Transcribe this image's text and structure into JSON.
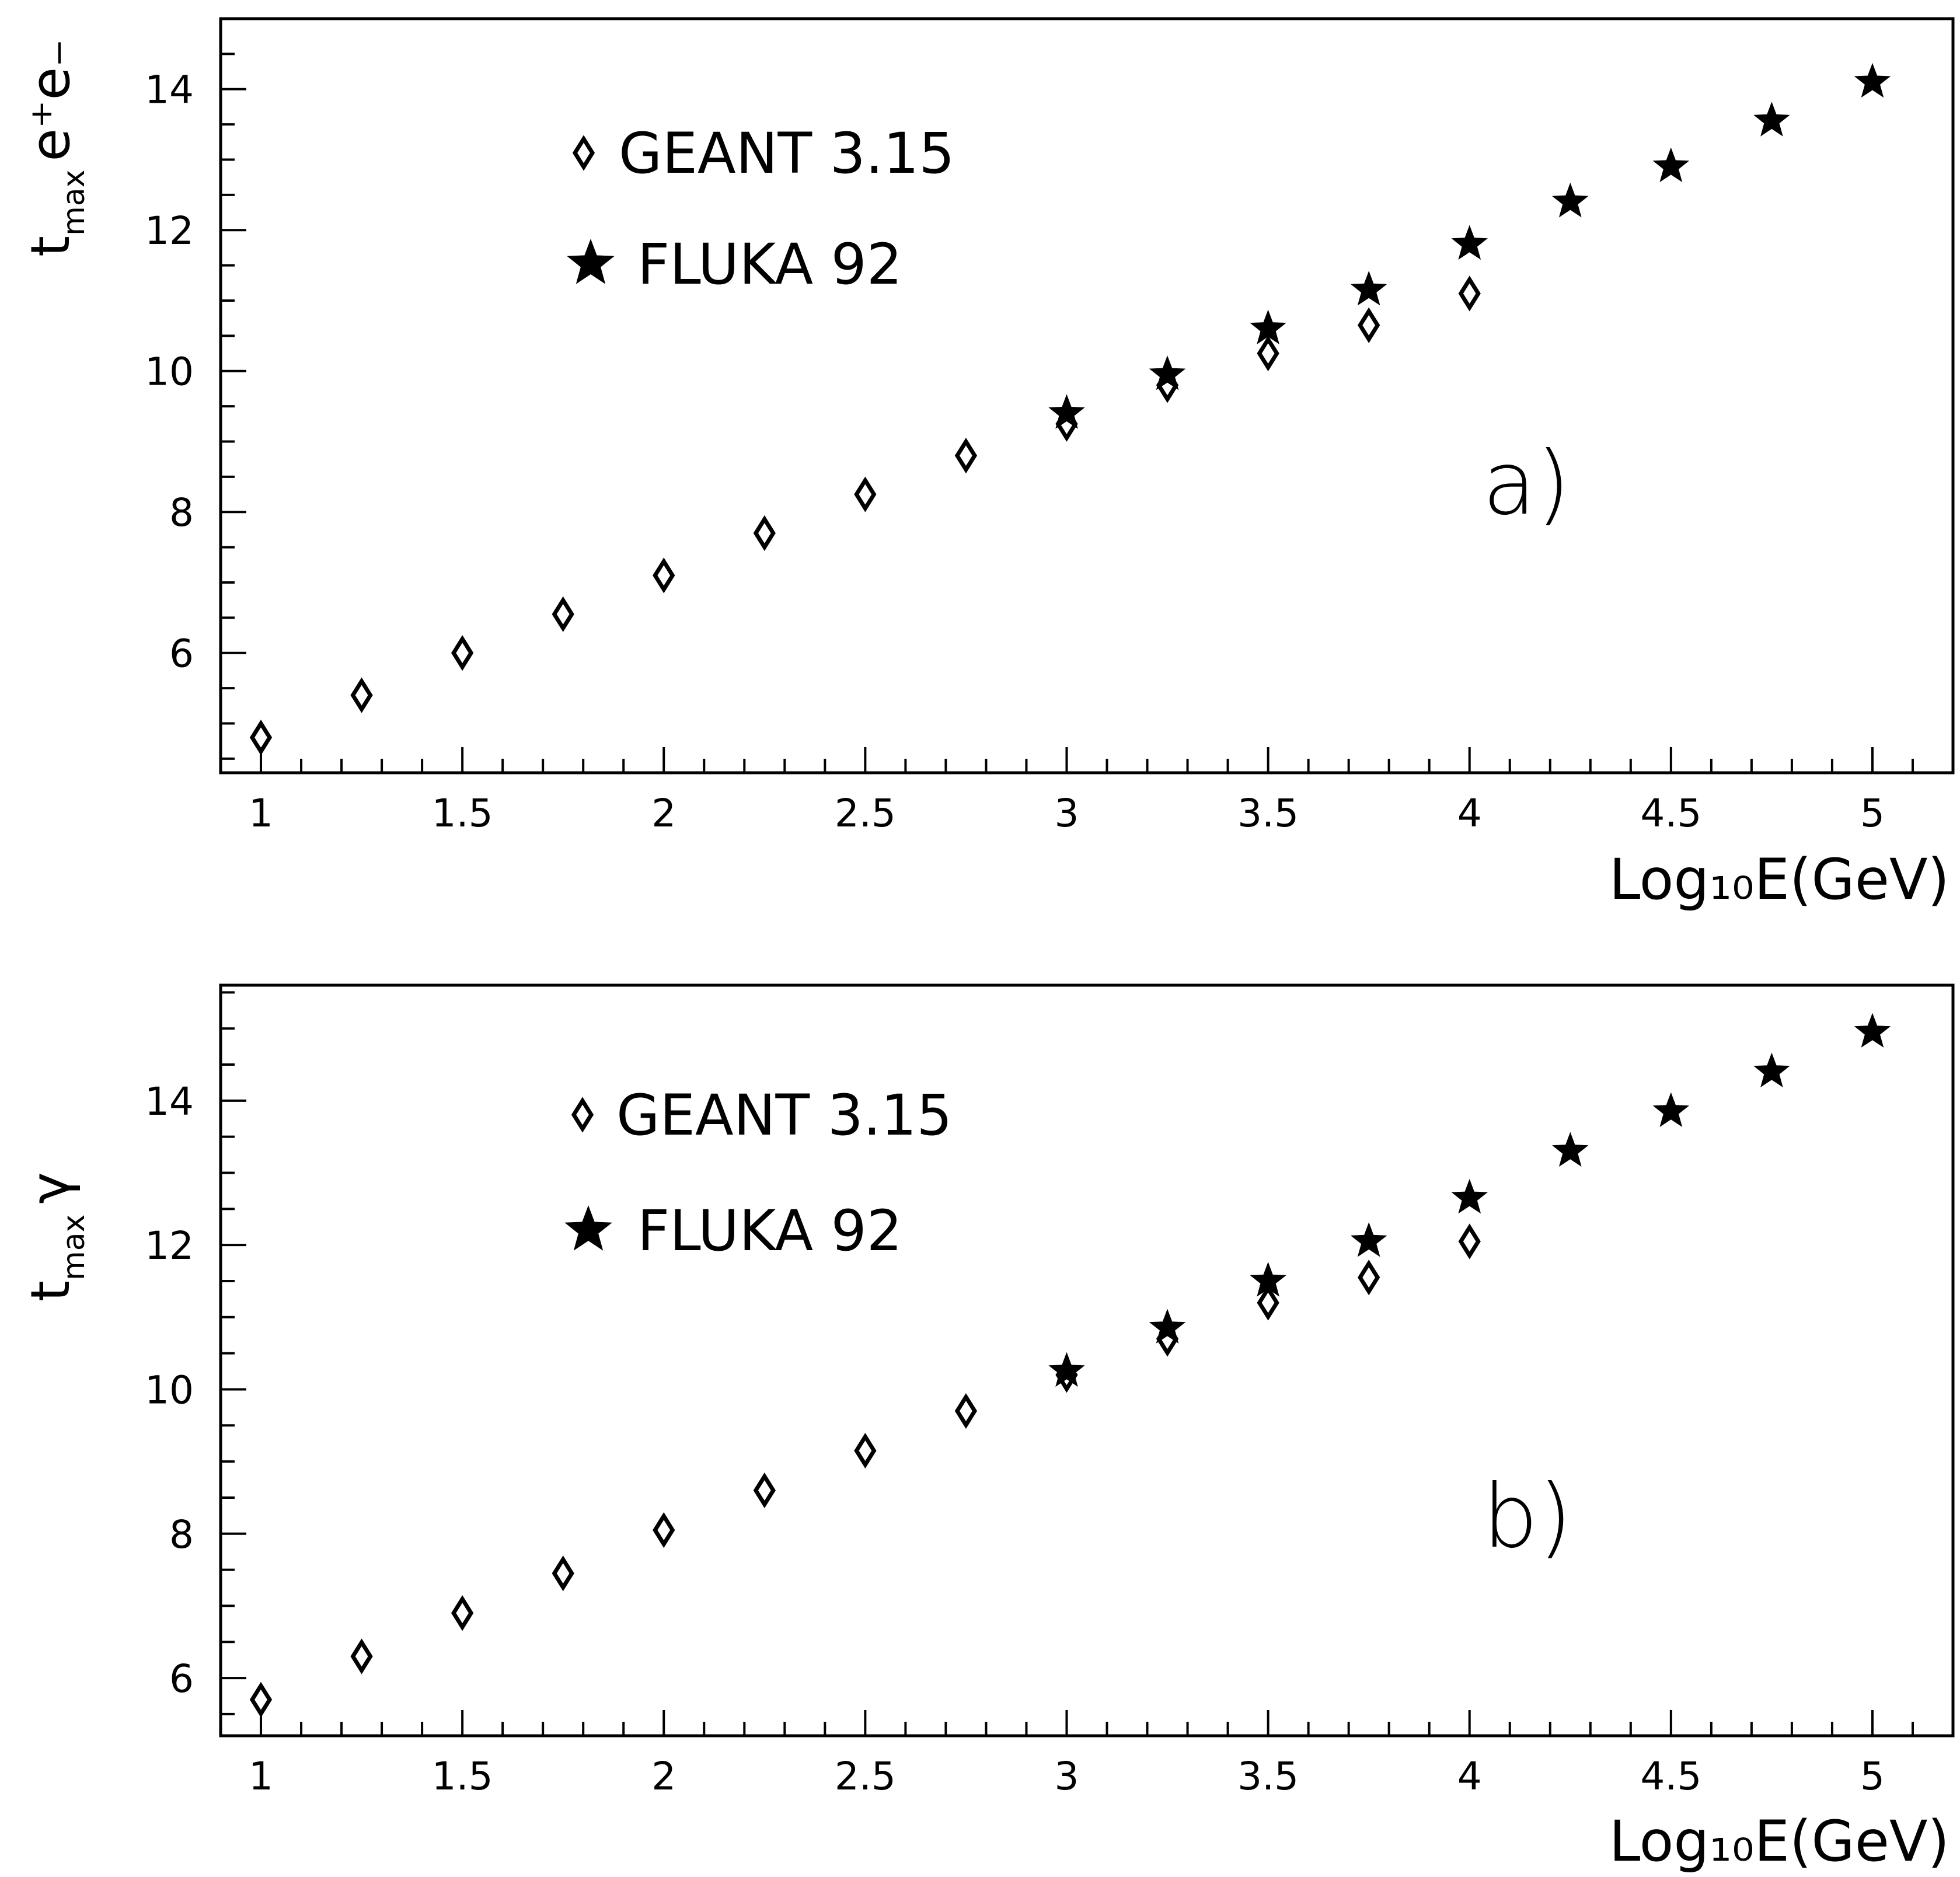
{
  "chart_data": [
    {
      "type": "scatter",
      "panel_label": "a)",
      "xlabel": "Log₁₀E(GeV)",
      "ylabel": "t_max e⁺e₋",
      "ylabel_main": "t",
      "ylabel_sub": "max",
      "ylabel_suffix": "e⁺e₋",
      "xlim": [
        0.9,
        5.2
      ],
      "ylim": [
        4.3,
        15.0
      ],
      "x_ticks": [
        1,
        1.5,
        2,
        2.5,
        3,
        3.5,
        4,
        4.5,
        5
      ],
      "x_tick_labels": [
        "1",
        "1.5",
        "2",
        "2.5",
        "3",
        "3.5",
        "4",
        "4.5",
        "5"
      ],
      "y_ticks": [
        6,
        8,
        10,
        12,
        14
      ],
      "y_tick_labels": [
        "6",
        "8",
        "10",
        "12",
        "14"
      ],
      "legend_position": "top-left",
      "grid": false,
      "series": [
        {
          "name": "GEANT 3.15",
          "marker": "open-diamond",
          "x": [
            1.0,
            1.25,
            1.5,
            1.75,
            2.0,
            2.25,
            2.5,
            2.75,
            3.0,
            3.25,
            3.5,
            3.75,
            4.0
          ],
          "y": [
            4.8,
            5.4,
            6.0,
            6.55,
            7.1,
            7.7,
            8.25,
            8.8,
            9.25,
            9.8,
            10.25,
            10.65,
            11.1
          ]
        },
        {
          "name": "FLUKA 92",
          "marker": "filled-star",
          "x": [
            3.0,
            3.25,
            3.5,
            3.75,
            4.0,
            4.25,
            4.5,
            4.75,
            5.0
          ],
          "y": [
            9.4,
            9.95,
            10.6,
            11.15,
            11.8,
            12.4,
            12.9,
            13.55,
            14.1
          ]
        }
      ]
    },
    {
      "type": "scatter",
      "panel_label": "b)",
      "xlabel": "Log₁₀E(GeV)",
      "ylabel": "t_max γ",
      "ylabel_main": "t",
      "ylabel_sub": "max",
      "ylabel_suffix": "γ",
      "xlim": [
        0.9,
        5.2
      ],
      "ylim": [
        5.2,
        15.6
      ],
      "x_ticks": [
        1,
        1.5,
        2,
        2.5,
        3,
        3.5,
        4,
        4.5,
        5
      ],
      "x_tick_labels": [
        "1",
        "1.5",
        "2",
        "2.5",
        "3",
        "3.5",
        "4",
        "4.5",
        "5"
      ],
      "y_ticks": [
        6,
        8,
        10,
        12,
        14
      ],
      "y_tick_labels": [
        "6",
        "8",
        "10",
        "12",
        "14"
      ],
      "legend_position": "top-left",
      "grid": false,
      "series": [
        {
          "name": "GEANT 3.15",
          "marker": "open-diamond",
          "x": [
            1.0,
            1.25,
            1.5,
            1.75,
            2.0,
            2.25,
            2.5,
            2.75,
            3.0,
            3.25,
            3.5,
            3.75,
            4.0
          ],
          "y": [
            5.7,
            6.3,
            6.9,
            7.45,
            8.05,
            8.6,
            9.15,
            9.7,
            10.2,
            10.7,
            11.2,
            11.55,
            12.05
          ]
        },
        {
          "name": "FLUKA 92",
          "marker": "filled-star",
          "x": [
            3.0,
            3.25,
            3.5,
            3.75,
            4.0,
            4.25,
            4.5,
            4.75,
            5.0
          ],
          "y": [
            10.25,
            10.85,
            11.5,
            12.05,
            12.65,
            13.3,
            13.85,
            14.4,
            14.95
          ]
        }
      ]
    }
  ]
}
